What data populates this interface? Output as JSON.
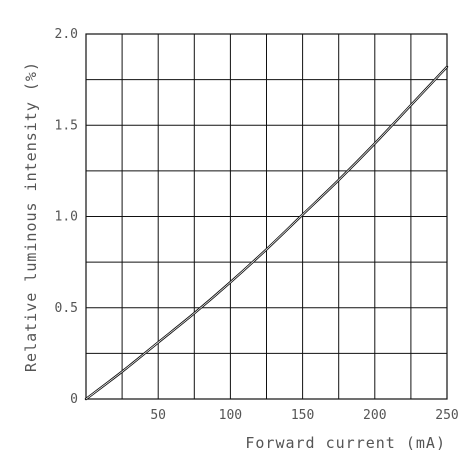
{
  "chart_data": {
    "type": "line",
    "xlabel": "Forward current (mA)",
    "ylabel": "Relative luminous intensity (%)",
    "xlim": [
      0,
      250
    ],
    "ylim": [
      0,
      2.0
    ],
    "x_tick_labels": [
      "50",
      "100",
      "150",
      "200",
      "250"
    ],
    "x_tick_values": [
      50,
      100,
      150,
      200,
      250
    ],
    "y_tick_labels": [
      "0",
      "0.5",
      "1.0",
      "1.5",
      "2.0"
    ],
    "y_tick_values": [
      0,
      0.5,
      1.0,
      1.5,
      2.0
    ],
    "grid": true,
    "grid_x_step": 25,
    "grid_y_step": 0.25,
    "series": [
      {
        "x": [
          0,
          25,
          50,
          75,
          100,
          125,
          150,
          175,
          200,
          225,
          250
        ],
        "values": [
          0,
          0.15,
          0.31,
          0.47,
          0.64,
          0.82,
          1.01,
          1.2,
          1.4,
          1.61,
          1.82
        ]
      }
    ],
    "colors": {
      "line": "#111111",
      "grid": "#111111",
      "text": "#555555"
    }
  }
}
